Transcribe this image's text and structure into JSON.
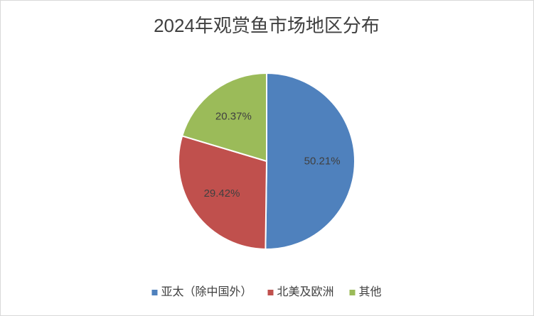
{
  "chart_data": {
    "type": "pie",
    "title": "2024年观赏鱼市场地区分布",
    "categories": [
      "亚太（除中国外）",
      "北美及欧洲",
      "其他"
    ],
    "values": [
      50.21,
      29.42,
      20.37
    ],
    "value_labels": [
      "50.21%",
      "29.42%",
      "20.37%"
    ],
    "colors": [
      "#4f81bd",
      "#c0504d",
      "#9bbb59"
    ],
    "legend": "bottom"
  }
}
